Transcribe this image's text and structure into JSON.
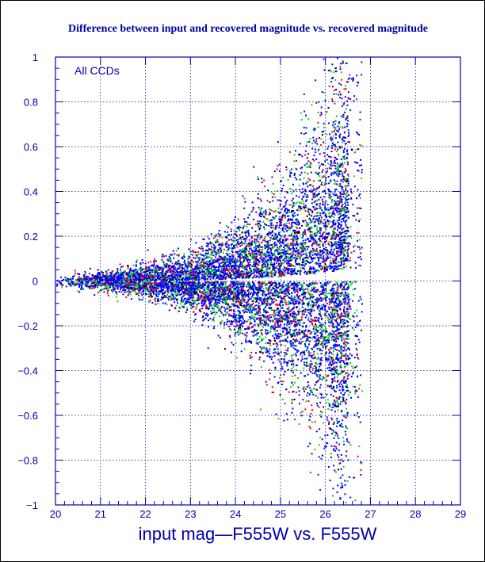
{
  "chart_data": {
    "type": "scatter",
    "title": "Difference between input and recovered magnitude vs. recovered magnitude",
    "xlabel": "input mag—F555W vs. F555W",
    "ylabel": "",
    "annotation": "All CCDs",
    "xlim": [
      20,
      29
    ],
    "ylim": [
      -1,
      1
    ],
    "xticks": [
      "20",
      "21",
      "22",
      "23",
      "24",
      "25",
      "26",
      "27",
      "28",
      "29"
    ],
    "yticks": [
      "−1",
      "−0.8",
      "−0.6",
      "−0.4",
      "−0.2",
      "0",
      "0.2",
      "0.4",
      "0.6",
      "0.8",
      "1"
    ],
    "grid": true,
    "legend": "none",
    "series_colors": [
      "#0000ff",
      "#00dd00",
      "#ff0000",
      "#000000"
    ],
    "series_weights": [
      0.62,
      0.2,
      0.12,
      0.06
    ],
    "distribution": {
      "x_range": [
        20,
        26.8
      ],
      "x_cutoff": 26.5,
      "y_center": 0.0,
      "spread_at_x": [
        {
          "x": 20.0,
          "y_sigma": 0.012
        },
        {
          "x": 21.0,
          "y_sigma": 0.02
        },
        {
          "x": 22.0,
          "y_sigma": 0.035
        },
        {
          "x": 23.0,
          "y_sigma": 0.06
        },
        {
          "x": 24.0,
          "y_sigma": 0.11
        },
        {
          "x": 25.0,
          "y_sigma": 0.2
        },
        {
          "x": 26.0,
          "y_sigma": 0.35
        },
        {
          "x": 26.5,
          "y_sigma": 0.5
        }
      ],
      "positive_skew": 0.06
    },
    "colors": {
      "axis": "#0000aa",
      "grid": "#0000aa",
      "title": "#0000aa",
      "tick_labels": "#0000aa",
      "xlabel": "#0000aa",
      "annotation": "#0000aa"
    }
  }
}
